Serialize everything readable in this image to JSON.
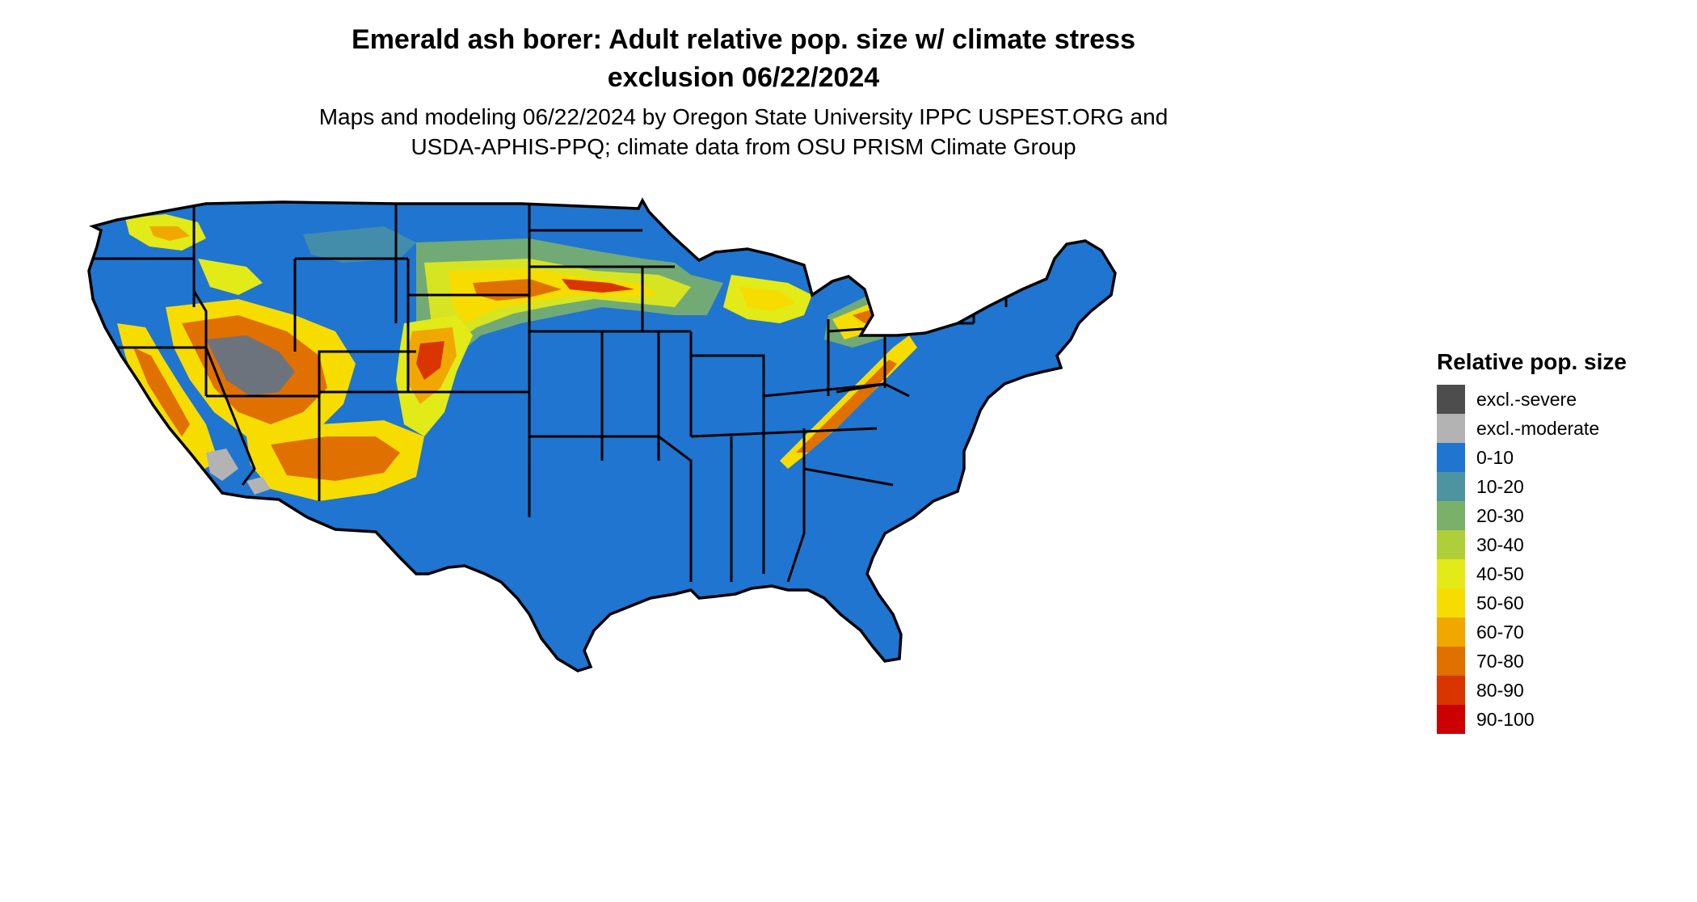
{
  "title_lines": [
    "Emerald ash borer: Adult relative pop. size w/ climate stress",
    "exclusion 06/22/2024"
  ],
  "subtitle_lines": [
    "Maps and modeling 06/22/2024 by Oregon State University IPPC USPEST.ORG and",
    "USDA-APHIS-PPQ; climate data from OSU PRISM Climate Group"
  ],
  "legend": {
    "title": "Relative pop. size",
    "items": [
      {
        "label": "excl.-severe",
        "color": "#4d4d4d"
      },
      {
        "label": "excl.-moderate",
        "color": "#b3b3b3"
      },
      {
        "label": "0-10",
        "color": "#1f75d0"
      },
      {
        "label": "10-20",
        "color": "#4e93a0"
      },
      {
        "label": "20-30",
        "color": "#7bb06b"
      },
      {
        "label": "30-40",
        "color": "#afcf3a"
      },
      {
        "label": "40-50",
        "color": "#e2ea18"
      },
      {
        "label": "50-60",
        "color": "#f7dc00"
      },
      {
        "label": "60-70",
        "color": "#f0a800"
      },
      {
        "label": "70-80",
        "color": "#e07000"
      },
      {
        "label": "80-90",
        "color": "#d83500"
      },
      {
        "label": "90-100",
        "color": "#cc0000"
      }
    ]
  },
  "map": {
    "base_color": "#1f75d0",
    "boundary_color": "#000000"
  }
}
